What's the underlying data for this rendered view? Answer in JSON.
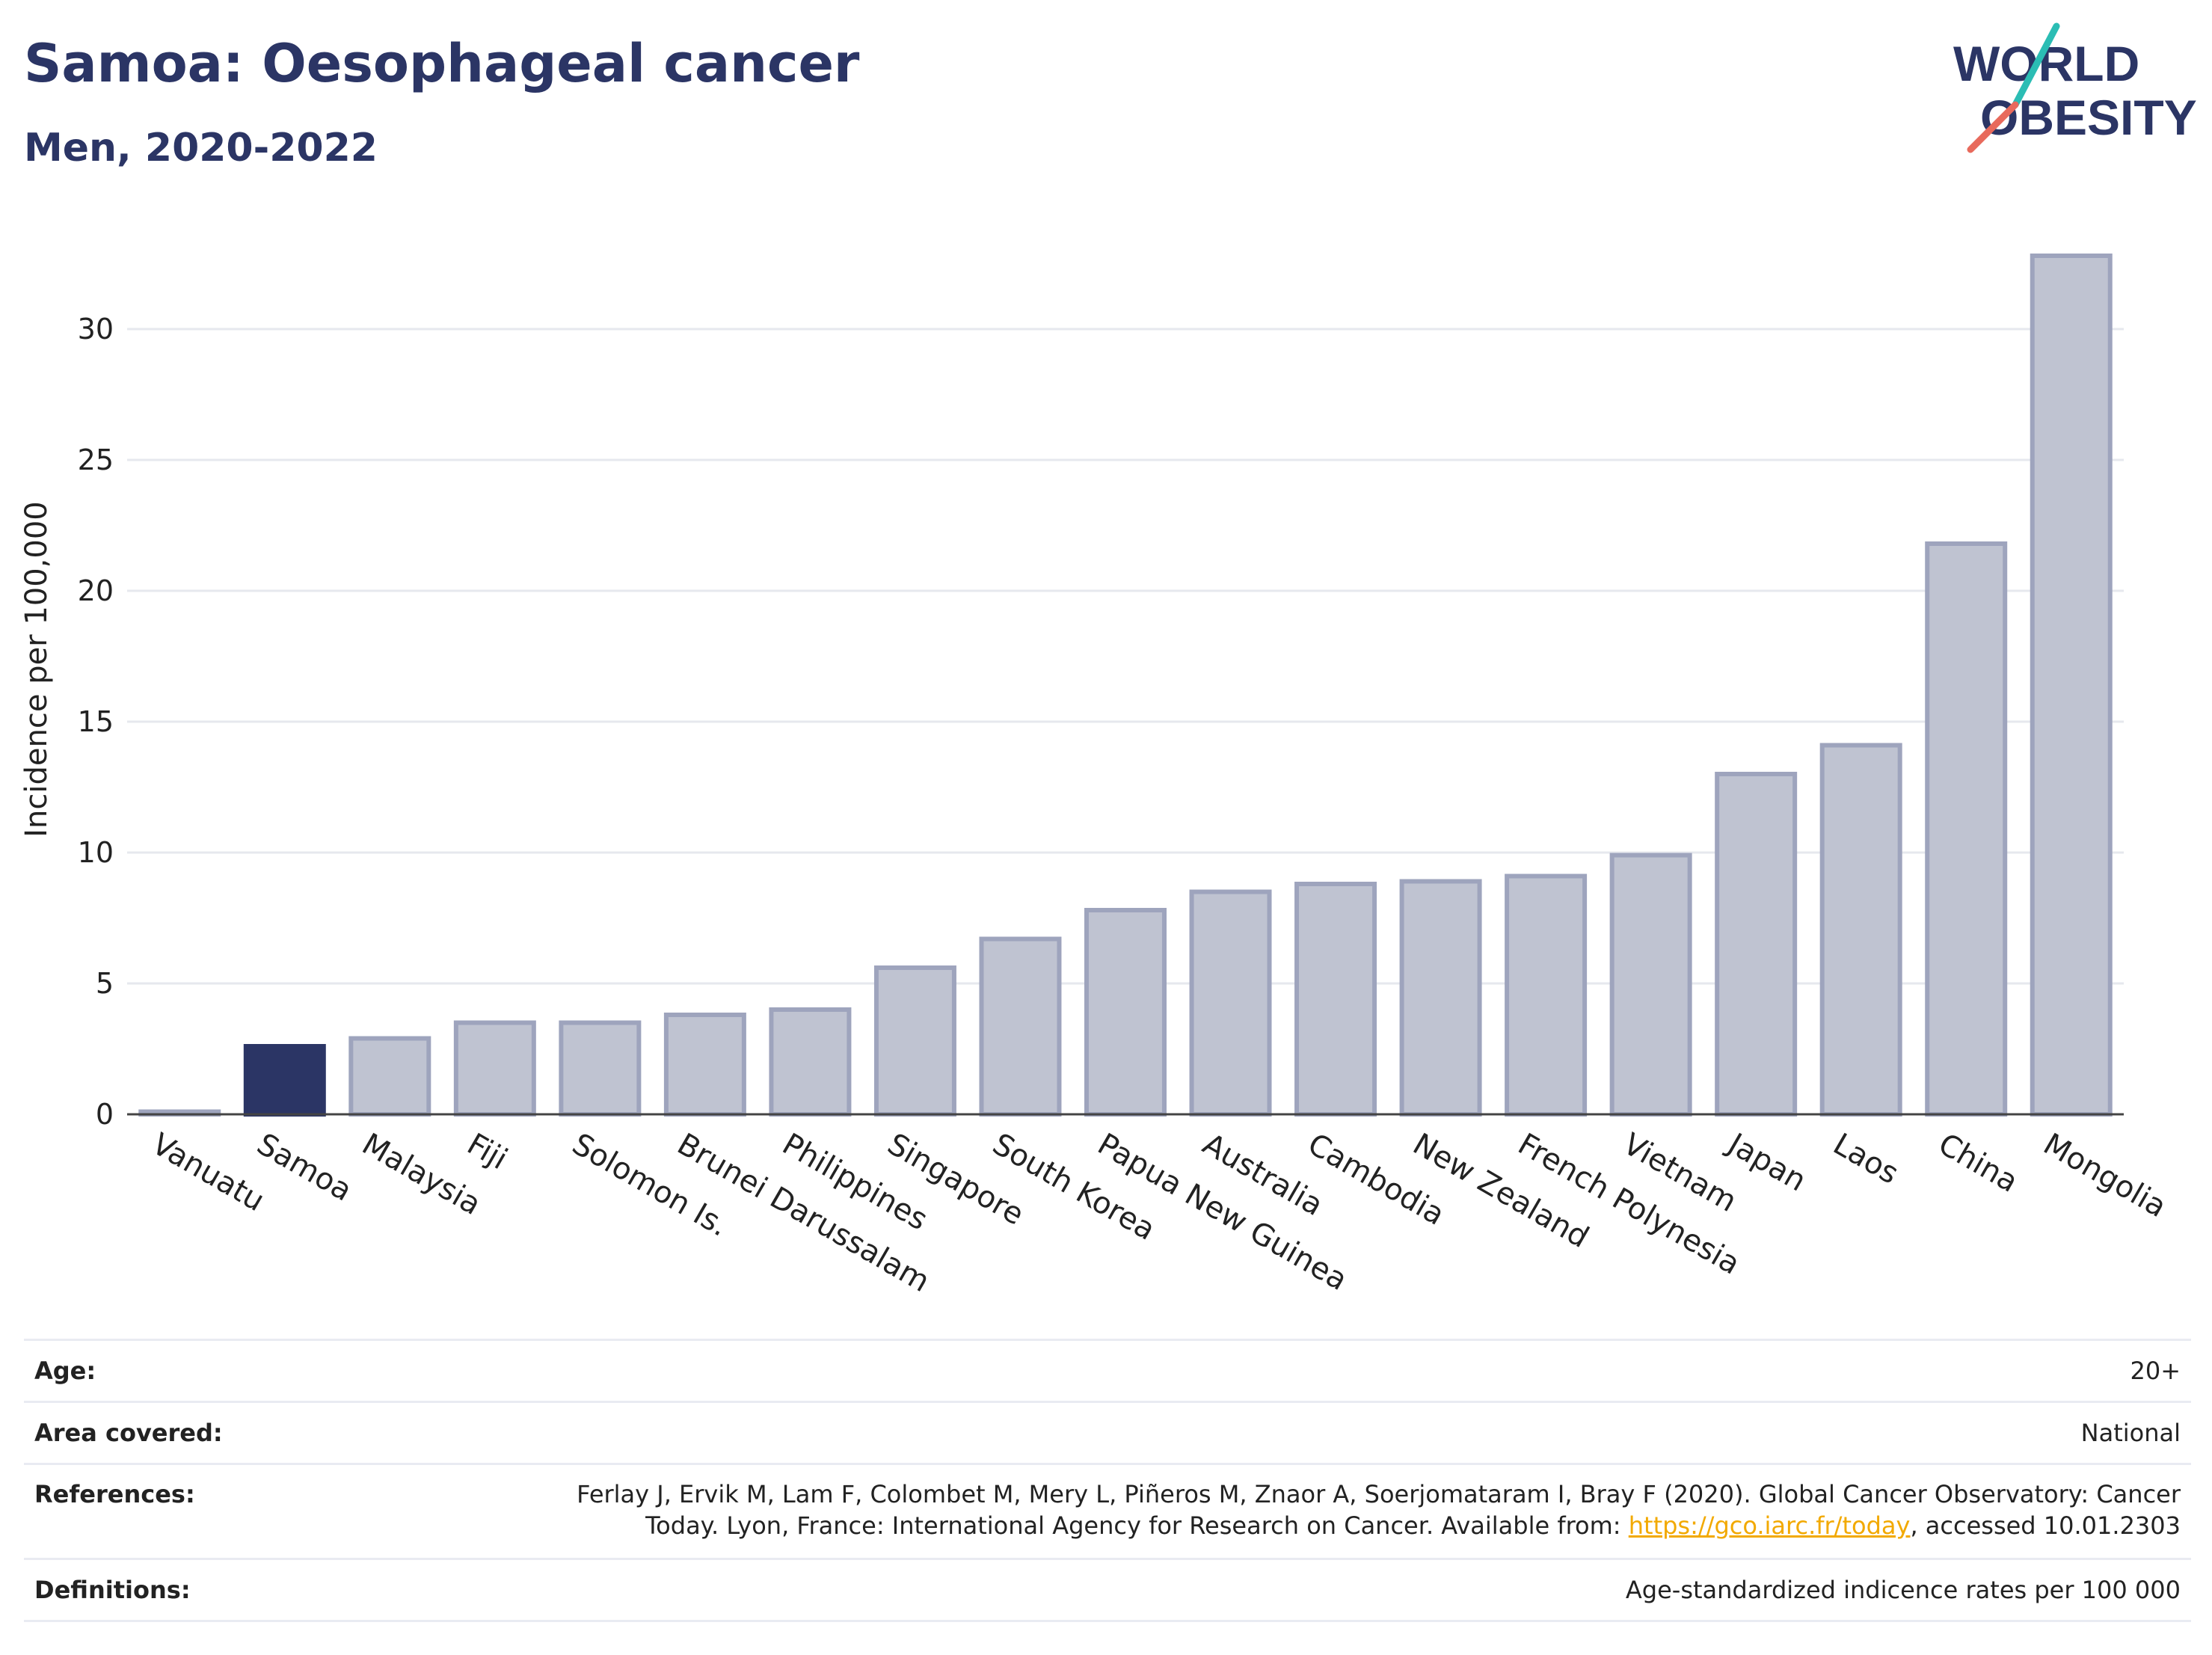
{
  "header": {
    "title": "Samoa: Oesophageal cancer",
    "subtitle": "Men, 2020-2022"
  },
  "logo": {
    "line1": "WORLD",
    "line2": "OBESITY",
    "brand_color": "#2b3565",
    "accent_teal": "#2bbdb4",
    "accent_coral": "#e86a5c"
  },
  "chart_data": {
    "type": "bar",
    "ylabel": "Incidence per 100,000",
    "ylim": [
      0,
      34
    ],
    "yticks": [
      0,
      5,
      10,
      15,
      20,
      25,
      30
    ],
    "grid": true,
    "categories": [
      "Vanuatu",
      "Samoa",
      "Malaysia",
      "Fiji",
      "Solomon Is.",
      "Brunei Darussalam",
      "Philippines",
      "Singapore",
      "South Korea",
      "Papua New Guinea",
      "Australia",
      "Cambodia",
      "New Zealand",
      "French Polynesia",
      "Vietnam",
      "Japan",
      "Laos",
      "China",
      "Mongolia"
    ],
    "values": [
      0.1,
      2.6,
      2.9,
      3.5,
      3.5,
      3.8,
      4.0,
      5.6,
      6.7,
      7.8,
      8.5,
      8.8,
      8.9,
      9.1,
      9.9,
      13.0,
      14.1,
      21.8,
      32.8
    ],
    "highlight": "Samoa",
    "colors": {
      "highlight": "#2b3565",
      "default_fill": "#bfc3d1",
      "default_stroke": "#9ea4bd"
    }
  },
  "meta": {
    "age_label": "Age:",
    "age_value": "20+",
    "area_label": "Area covered:",
    "area_value": "National",
    "references_label": "References:",
    "references_line1": "Ferlay J, Ervik M, Lam F, Colombet M, Mery L, Piñeros M, Znaor A, Soerjomataram I, Bray F (2020). Global Cancer Observatory: Cancer",
    "references_line2_pre": "Today. Lyon, France: International Agency for Research on Cancer. Available from: ",
    "references_link": "https://gco.iarc.fr/today",
    "references_line2_post": ", accessed 10.01.2303",
    "definitions_label": "Definitions:",
    "definitions_value": "Age-standardized indicence rates per 100 000"
  }
}
